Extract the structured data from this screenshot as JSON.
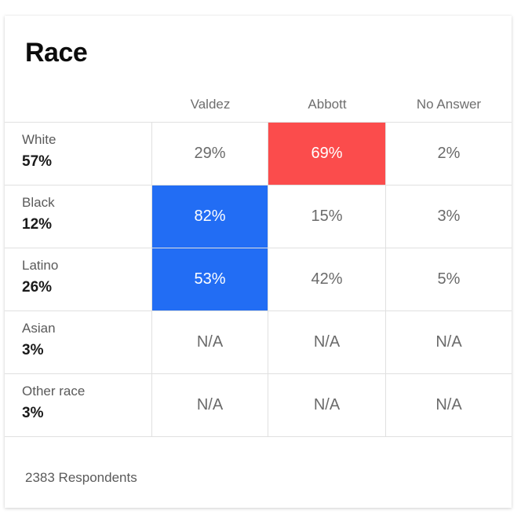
{
  "title": "Race",
  "columns": [
    "Valdez",
    "Abbott",
    "No Answer"
  ],
  "rows": [
    {
      "label": "White",
      "share": "57%",
      "values": [
        "29%",
        "69%",
        "2%"
      ],
      "highlight": [
        null,
        "red",
        null
      ]
    },
    {
      "label": "Black",
      "share": "12%",
      "values": [
        "82%",
        "15%",
        "3%"
      ],
      "highlight": [
        "blue",
        null,
        null
      ]
    },
    {
      "label": "Latino",
      "share": "26%",
      "values": [
        "53%",
        "42%",
        "5%"
      ],
      "highlight": [
        "blue",
        null,
        null
      ]
    },
    {
      "label": "Asian",
      "share": "3%",
      "values": [
        "N/A",
        "N/A",
        "N/A"
      ],
      "highlight": [
        null,
        null,
        null
      ]
    },
    {
      "label": "Other race",
      "share": "3%",
      "values": [
        "N/A",
        "N/A",
        "N/A"
      ],
      "highlight": [
        null,
        null,
        null
      ]
    }
  ],
  "footer": "2383 Respondents",
  "colors": {
    "blue": "#226df4",
    "red": "#fb4c4c"
  }
}
